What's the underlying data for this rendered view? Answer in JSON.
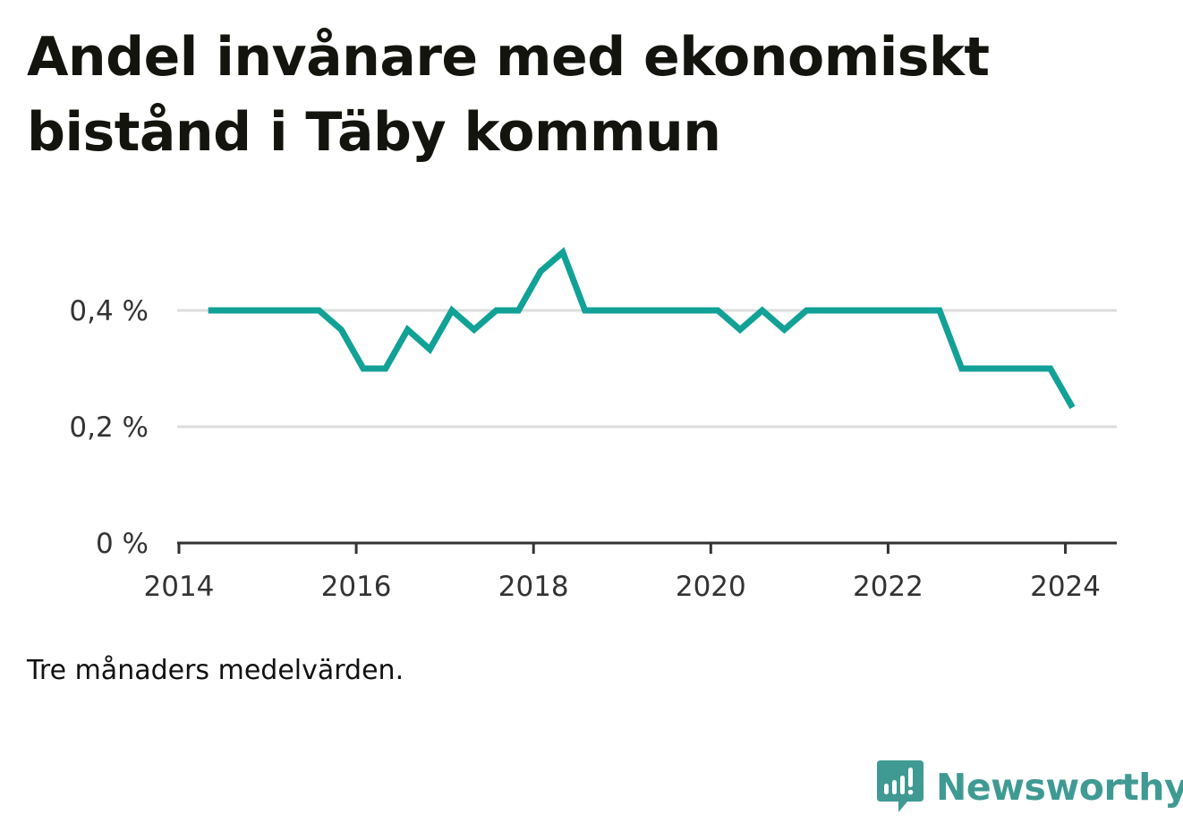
{
  "title": "Andel invånare med ekonomiskt bistånd i Täby kommun",
  "note": "Tre månaders medelvärden.",
  "brand": {
    "name": "Newsworthy",
    "color": "#3f9a93"
  },
  "colors": {
    "line": "#12a196",
    "grid": "#dddddd",
    "axis": "#333333"
  },
  "chart_data": {
    "type": "line",
    "title": "Andel invånare med ekonomiskt bistånd i Täby kommun",
    "xlabel": "",
    "ylabel": "",
    "xlim": [
      2013.98,
      2024.58
    ],
    "ylim": [
      0,
      0.5
    ],
    "grid": true,
    "xticks": [
      2014,
      2016,
      2018,
      2020,
      2022,
      2024
    ],
    "yticks": [
      {
        "value": 0,
        "label": "0 %"
      },
      {
        "value": 0.2,
        "label": "0,2 %"
      },
      {
        "value": 0.4,
        "label": "0,4 %"
      }
    ],
    "series": [
      {
        "x": [
          2014.33,
          2014.58,
          2014.83,
          2015.08,
          2015.33,
          2015.58,
          2015.83,
          2016.08,
          2016.33,
          2016.58,
          2016.83,
          2017.08,
          2017.33,
          2017.58,
          2017.83,
          2018.08,
          2018.33,
          2018.58,
          2018.83,
          2019.08,
          2019.33,
          2019.58,
          2019.83,
          2020.08,
          2020.33,
          2020.58,
          2020.83,
          2021.08,
          2021.33,
          2021.58,
          2021.83,
          2022.08,
          2022.33,
          2022.58,
          2022.83,
          2023.08,
          2023.33,
          2023.58,
          2023.83,
          2024.08
        ],
        "values": [
          0.4,
          0.4,
          0.4,
          0.4,
          0.4,
          0.4,
          0.367,
          0.3,
          0.3,
          0.367,
          0.333,
          0.4,
          0.367,
          0.4,
          0.4,
          0.467,
          0.5,
          0.4,
          0.4,
          0.4,
          0.4,
          0.4,
          0.4,
          0.4,
          0.367,
          0.4,
          0.367,
          0.4,
          0.4,
          0.4,
          0.4,
          0.4,
          0.4,
          0.4,
          0.3,
          0.3,
          0.3,
          0.3,
          0.3,
          0.233
        ]
      }
    ]
  }
}
